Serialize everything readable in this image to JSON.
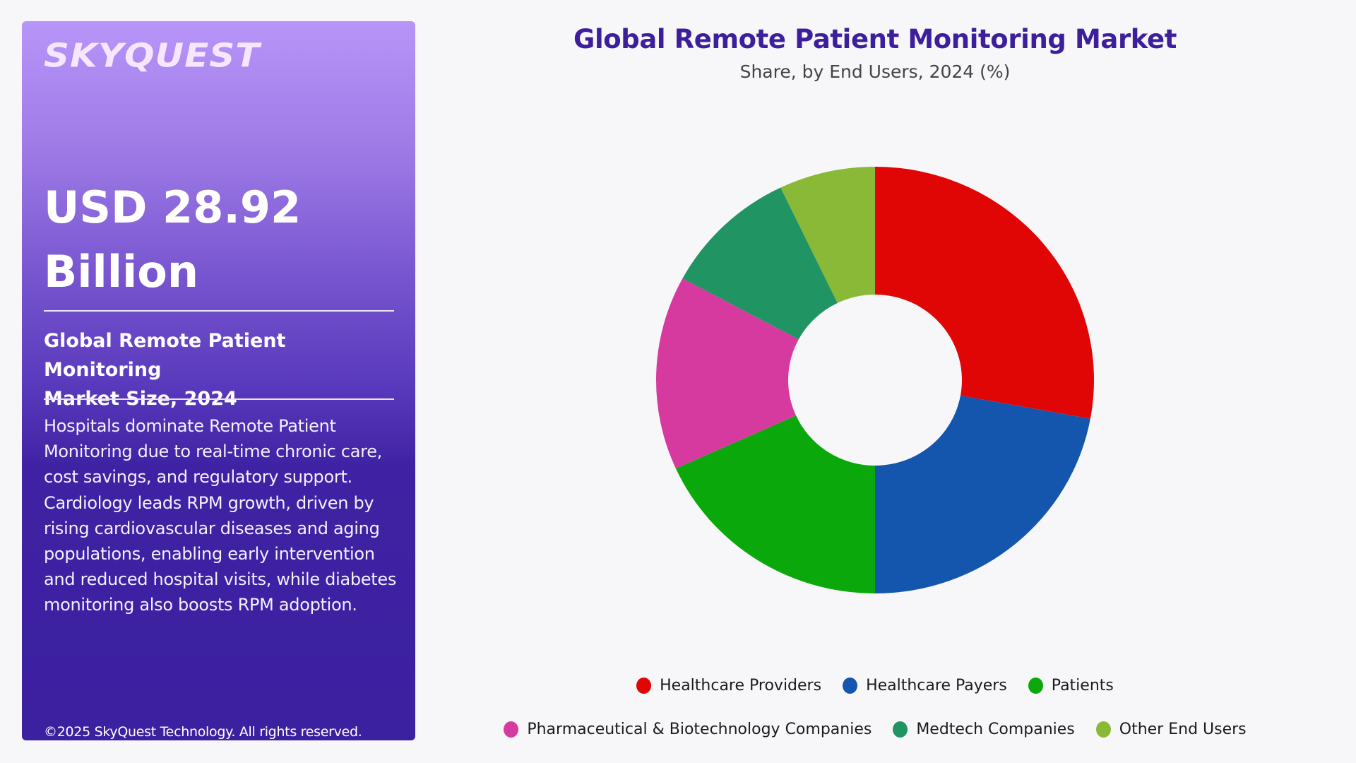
{
  "panel": {
    "logo": "SKYQUEST",
    "value_line1": "USD 28.92",
    "value_line2": "Billion",
    "subtitle_line1": "Global Remote Patient Monitoring",
    "subtitle_line2": "Market Size, 2024",
    "body": "Hospitals dominate Remote Patient Monitoring due to real-time chronic care, cost savings, and regulatory support. Cardiology leads RPM growth, driven by rising cardiovascular diseases and aging populations, enabling early intervention and reduced hospital visits, while diabetes monitoring also boosts RPM adoption.",
    "copyright": "©2025 SkyQuest Technology. All rights reserved."
  },
  "chart": {
    "title": "Global Remote Patient Monitoring Market",
    "subtitle": "Share, by End Users, 2024 (%)"
  },
  "legend": {
    "row1": [
      {
        "label": "Healthcare Providers",
        "color": "#e00606"
      },
      {
        "label": "Healthcare Payers",
        "color": "#1456ad"
      },
      {
        "label": "Patients",
        "color": "#0aa80a"
      }
    ],
    "row2": [
      {
        "label": "Pharmaceutical & Biotechnology Companies",
        "color": "#d63a9e"
      },
      {
        "label": "Medtech Companies",
        "color": "#209463"
      },
      {
        "label": "Other End Users",
        "color": "#8ab937"
      }
    ]
  },
  "chart_data": {
    "type": "pie",
    "donut": true,
    "title": "Global Remote Patient Monitoring Market",
    "subtitle": "Share, by End Users, 2024 (%)",
    "categories": [
      "Healthcare Providers",
      "Healthcare Payers",
      "Patients",
      "Pharmaceutical & Biotechnology Companies",
      "Medtech Companies",
      "Other End Users"
    ],
    "values": [
      27.9,
      22.1,
      18.2,
      14.7,
      10.0,
      7.1
    ],
    "colors": [
      "#e00606",
      "#1456ad",
      "#0aa80a",
      "#d63a9e",
      "#209463",
      "#8ab937"
    ],
    "legend_position": "bottom",
    "start_angle_deg": 0,
    "direction": "clockwise"
  }
}
